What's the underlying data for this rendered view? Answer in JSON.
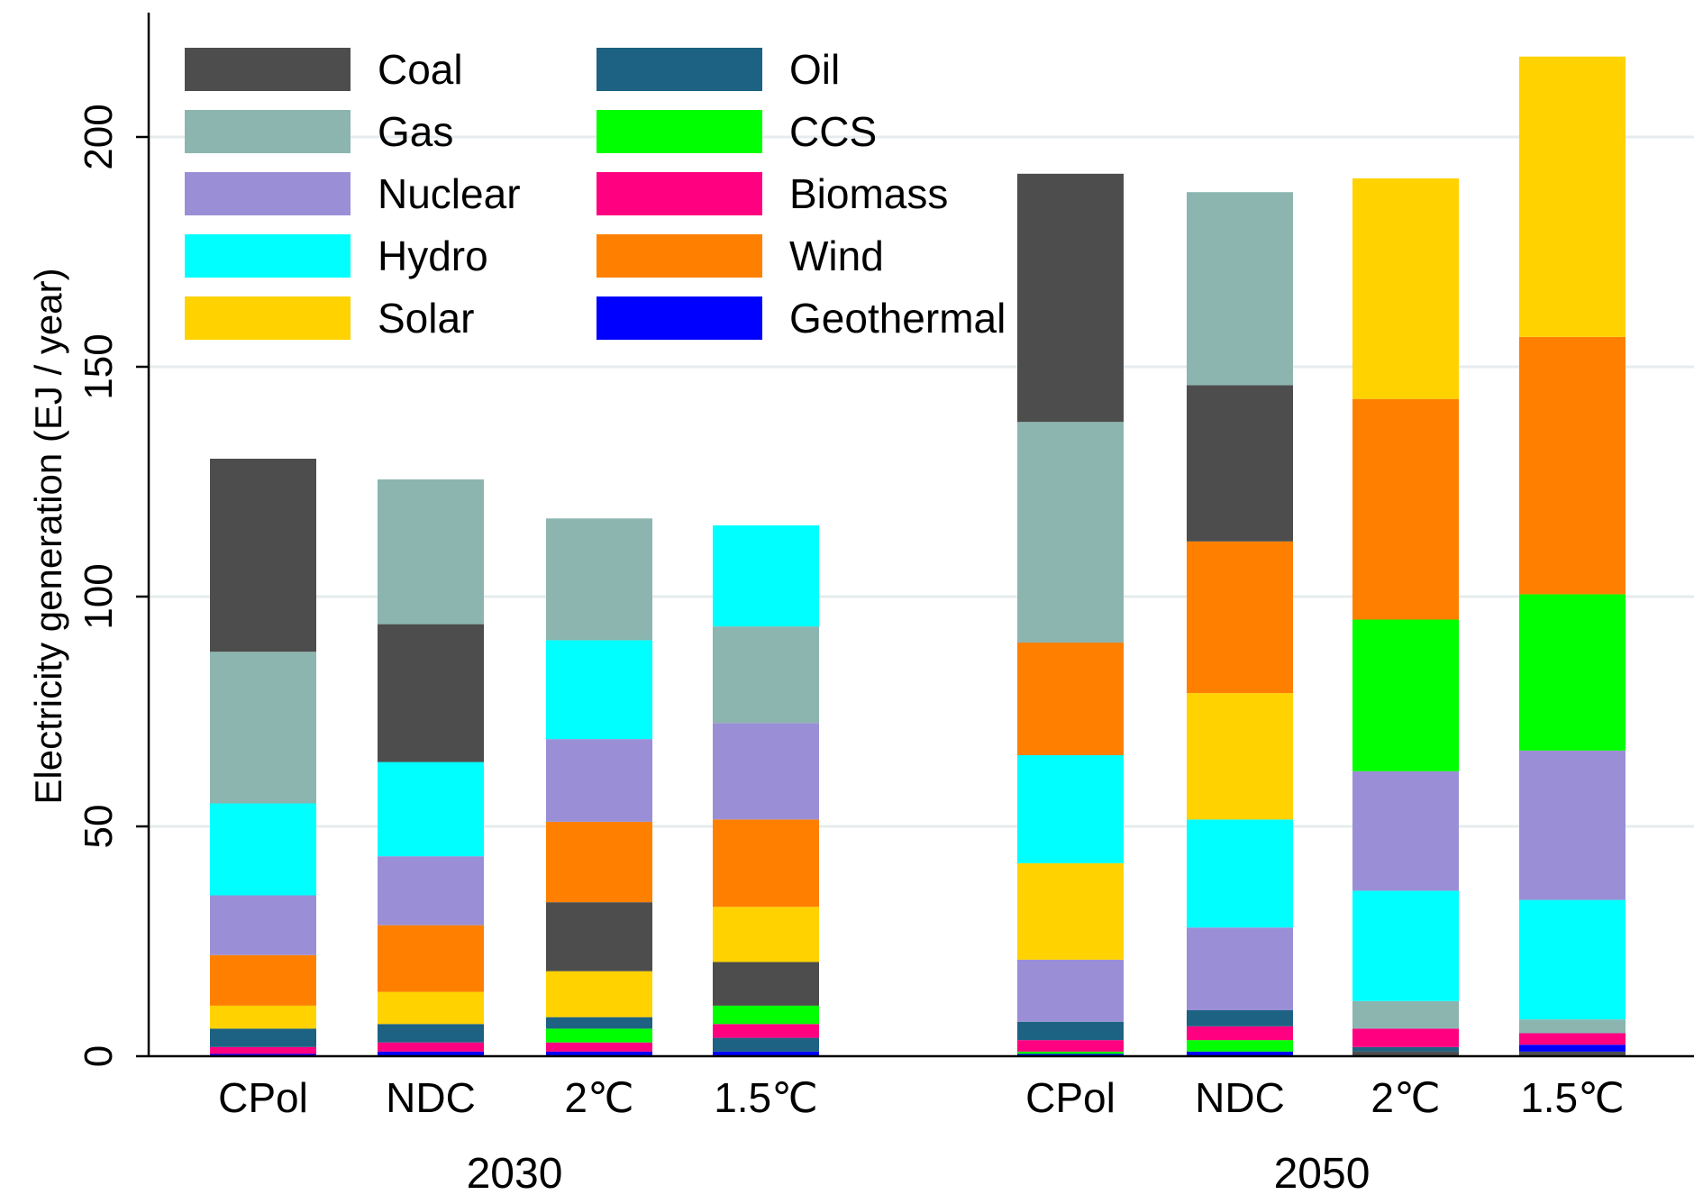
{
  "chart_data": {
    "type": "bar",
    "stacked": true,
    "ylabel": "Electricity generation  (EJ / year)",
    "ylim": [
      0,
      230
    ],
    "yticks": [
      0,
      50,
      100,
      150,
      200
    ],
    "grid": true,
    "legend_placement": "top-left",
    "groups": [
      {
        "label": "2030",
        "categories": [
          "CPol",
          "NDC",
          "2℃",
          "1.5℃"
        ]
      },
      {
        "label": "2050",
        "categories": [
          "CPol",
          "NDC",
          "2℃",
          "1.5℃"
        ]
      }
    ],
    "legend": [
      {
        "name": "Coal",
        "color": "#4d4d4d"
      },
      {
        "name": "Gas",
        "color": "#8cb5b0"
      },
      {
        "name": "Nuclear",
        "color": "#9a8fd6"
      },
      {
        "name": "Hydro",
        "color": "#00ffff"
      },
      {
        "name": "Solar",
        "color": "#ffd200"
      },
      {
        "name": "Oil",
        "color": "#1d6282"
      },
      {
        "name": "CCS",
        "color": "#00ff00"
      },
      {
        "name": "Biomass",
        "color": "#ff0080"
      },
      {
        "name": "Wind",
        "color": "#ff8000"
      },
      {
        "name": "Geothermal",
        "color": "#0000ff"
      }
    ],
    "bars": [
      {
        "group": "2030",
        "category": "CPol",
        "segments": [
          {
            "name": "Geothermal",
            "value": 0.5
          },
          {
            "name": "Biomass",
            "value": 1.5
          },
          {
            "name": "Oil",
            "value": 4
          },
          {
            "name": "Solar",
            "value": 5
          },
          {
            "name": "Wind",
            "value": 11
          },
          {
            "name": "Nuclear",
            "value": 13
          },
          {
            "name": "Hydro",
            "value": 20
          },
          {
            "name": "Gas",
            "value": 33
          },
          {
            "name": "Coal",
            "value": 42
          }
        ]
      },
      {
        "group": "2030",
        "category": "NDC",
        "segments": [
          {
            "name": "Geothermal",
            "value": 1
          },
          {
            "name": "Biomass",
            "value": 2
          },
          {
            "name": "Oil",
            "value": 4
          },
          {
            "name": "Solar",
            "value": 7
          },
          {
            "name": "Wind",
            "value": 14.5
          },
          {
            "name": "Nuclear",
            "value": 15
          },
          {
            "name": "Hydro",
            "value": 20.5
          },
          {
            "name": "Coal",
            "value": 30
          },
          {
            "name": "Gas",
            "value": 31.5
          }
        ]
      },
      {
        "group": "2030",
        "category": "2℃",
        "segments": [
          {
            "name": "Geothermal",
            "value": 1
          },
          {
            "name": "Biomass",
            "value": 2
          },
          {
            "name": "CCS",
            "value": 3
          },
          {
            "name": "Oil",
            "value": 2.5
          },
          {
            "name": "Solar",
            "value": 10
          },
          {
            "name": "Coal",
            "value": 15
          },
          {
            "name": "Wind",
            "value": 17.5
          },
          {
            "name": "Nuclear",
            "value": 18
          },
          {
            "name": "Hydro",
            "value": 21.5
          },
          {
            "name": "Gas",
            "value": 26.5
          }
        ]
      },
      {
        "group": "2030",
        "category": "1.5℃",
        "segments": [
          {
            "name": "Geothermal",
            "value": 1
          },
          {
            "name": "Oil",
            "value": 3
          },
          {
            "name": "Biomass",
            "value": 3
          },
          {
            "name": "CCS",
            "value": 4
          },
          {
            "name": "Coal",
            "value": 9.5
          },
          {
            "name": "Solar",
            "value": 12
          },
          {
            "name": "Wind",
            "value": 19
          },
          {
            "name": "Nuclear",
            "value": 21
          },
          {
            "name": "Gas",
            "value": 21
          },
          {
            "name": "Hydro",
            "value": 22
          }
        ]
      },
      {
        "group": "2050",
        "category": "CPol",
        "segments": [
          {
            "name": "Geothermal",
            "value": 0.5
          },
          {
            "name": "CCS",
            "value": 0.5
          },
          {
            "name": "Biomass",
            "value": 2.5
          },
          {
            "name": "Oil",
            "value": 4
          },
          {
            "name": "Nuclear",
            "value": 13.5
          },
          {
            "name": "Solar",
            "value": 21
          },
          {
            "name": "Hydro",
            "value": 23.5
          },
          {
            "name": "Wind",
            "value": 24.5
          },
          {
            "name": "Gas",
            "value": 48
          },
          {
            "name": "Coal",
            "value": 54
          }
        ]
      },
      {
        "group": "2050",
        "category": "NDC",
        "segments": [
          {
            "name": "Geothermal",
            "value": 1
          },
          {
            "name": "CCS",
            "value": 2.5
          },
          {
            "name": "Biomass",
            "value": 3
          },
          {
            "name": "Oil",
            "value": 3.5
          },
          {
            "name": "Nuclear",
            "value": 18
          },
          {
            "name": "Hydro",
            "value": 23.5
          },
          {
            "name": "Solar",
            "value": 27.5
          },
          {
            "name": "Wind",
            "value": 33
          },
          {
            "name": "Coal",
            "value": 34
          },
          {
            "name": "Gas",
            "value": 42
          }
        ]
      },
      {
        "group": "2050",
        "category": "2℃",
        "segments": [
          {
            "name": "Coal",
            "value": 1
          },
          {
            "name": "Oil",
            "value": 1
          },
          {
            "name": "Biomass",
            "value": 4
          },
          {
            "name": "Gas",
            "value": 6
          },
          {
            "name": "Hydro",
            "value": 24
          },
          {
            "name": "Nuclear",
            "value": 26
          },
          {
            "name": "CCS",
            "value": 33
          },
          {
            "name": "Wind",
            "value": 48
          },
          {
            "name": "Solar",
            "value": 48
          }
        ]
      },
      {
        "group": "2050",
        "category": "1.5℃",
        "segments": [
          {
            "name": "Coal",
            "value": 1
          },
          {
            "name": "Geothermal",
            "value": 1.5
          },
          {
            "name": "Biomass",
            "value": 2.5
          },
          {
            "name": "Gas",
            "value": 3
          },
          {
            "name": "Hydro",
            "value": 26
          },
          {
            "name": "Nuclear",
            "value": 32.5
          },
          {
            "name": "CCS",
            "value": 34
          },
          {
            "name": "Wind",
            "value": 56
          },
          {
            "name": "Solar",
            "value": 61
          }
        ]
      }
    ]
  }
}
